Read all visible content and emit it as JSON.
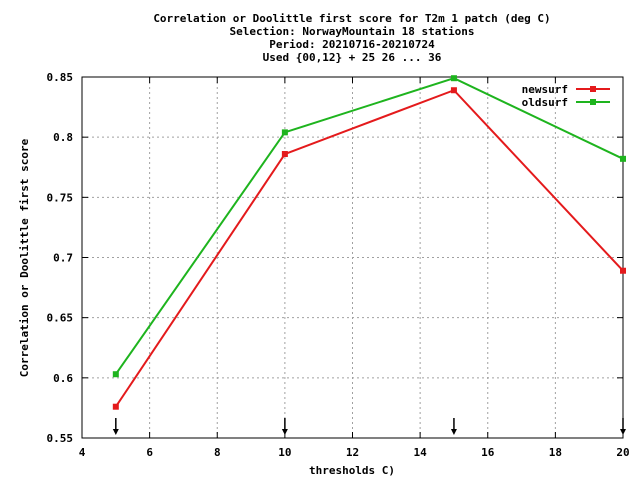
{
  "chart_data": {
    "type": "line",
    "title_lines": [
      "Correlation or Doolittle first score  for T2m 1 patch (deg C)",
      "Selection: NorwayMountain     18 stations",
      "Period: 20210716-20210724",
      "Used {00,12} + 25 26 ... 36"
    ],
    "xlabel": "thresholds C)",
    "ylabel": "Correlation or Doolittle first score",
    "xlim": [
      4,
      20
    ],
    "ylim": [
      0.55,
      0.85
    ],
    "xticks": [
      4,
      6,
      8,
      10,
      12,
      14,
      16,
      18,
      20
    ],
    "yticks": [
      0.55,
      0.6,
      0.65,
      0.7,
      0.75,
      0.8,
      0.85
    ],
    "ytick_labels": [
      "0.55",
      "0.6",
      "0.65",
      "0.7",
      "0.75",
      "0.8",
      "0.85"
    ],
    "grid": true,
    "legend_position": "top-right",
    "x": [
      5,
      10,
      15,
      20
    ],
    "series": [
      {
        "name": "newsurf",
        "color": "#e41a1c",
        "values": [
          0.576,
          0.786,
          0.839,
          0.689
        ]
      },
      {
        "name": "oldsurf",
        "color": "#1eb41e",
        "values": [
          0.603,
          0.804,
          0.849,
          0.782
        ]
      }
    ],
    "arrow_markers_x": [
      5,
      10,
      15,
      20
    ]
  }
}
